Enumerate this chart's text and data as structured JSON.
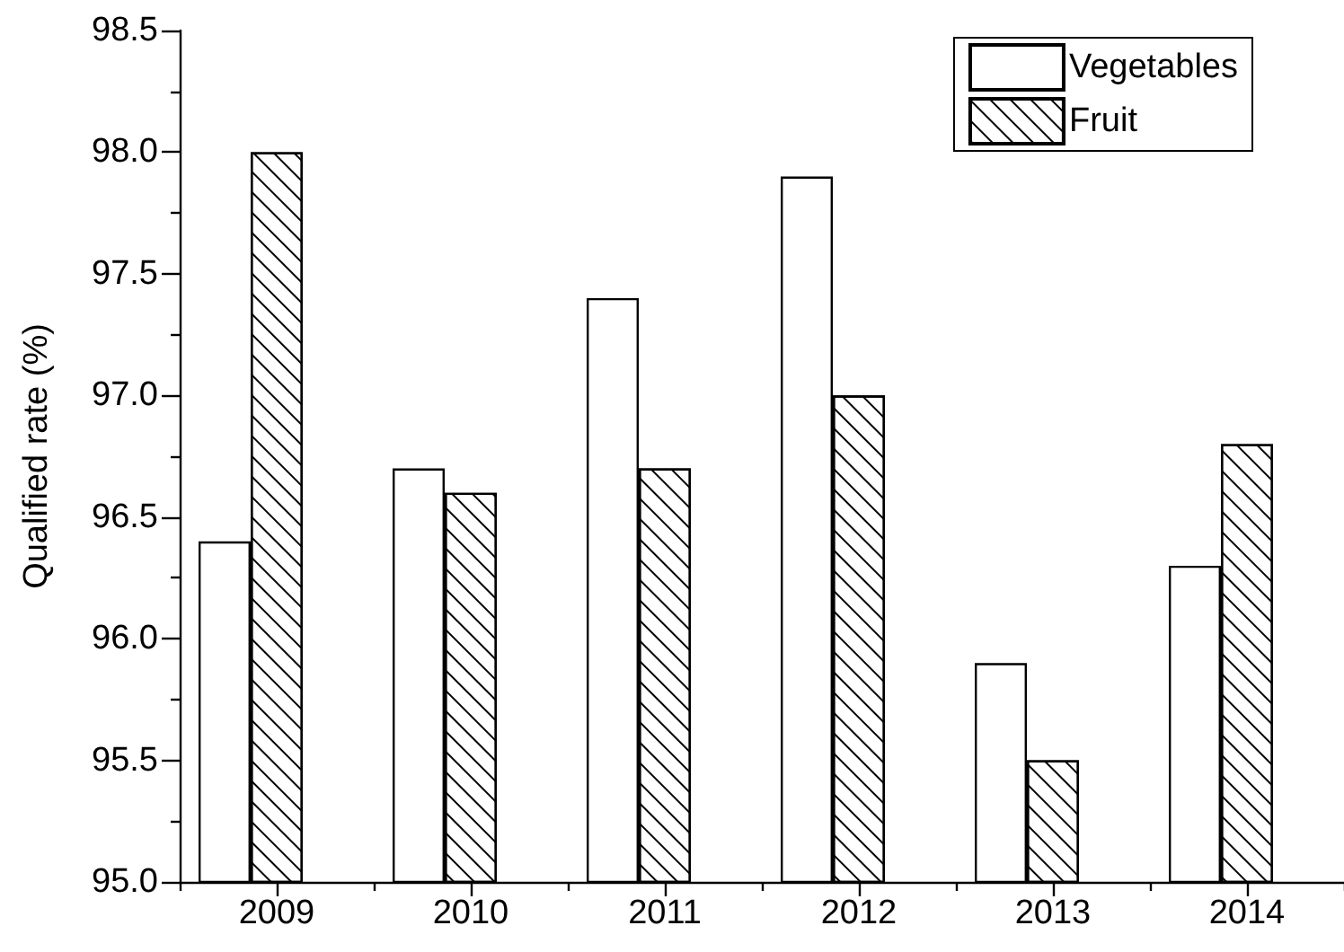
{
  "chart_data": {
    "type": "bar",
    "ylabel": "Qualified rate (%)",
    "categories": [
      "2009",
      "2010",
      "2011",
      "2012",
      "2013",
      "2014"
    ],
    "series": [
      {
        "name": "Vegetables",
        "color": "#ffffff",
        "values": [
          96.4,
          96.7,
          97.4,
          97.9,
          95.9,
          96.3
        ]
      },
      {
        "name": "Fruit",
        "color": "#ffffff",
        "values": [
          98.0,
          96.6,
          96.7,
          97.0,
          95.5,
          96.8
        ]
      }
    ],
    "ylim": [
      95,
      98.5
    ],
    "yticks": [
      {
        "value": 95,
        "label": "95.0"
      },
      95.5,
      {
        "value": 96,
        "label": "96.0"
      },
      96.5,
      {
        "value": 97,
        "label": "97.0"
      },
      97.5,
      {
        "value": 98,
        "label": "98.0"
      },
      98.5
    ],
    "legend": "top right"
  }
}
